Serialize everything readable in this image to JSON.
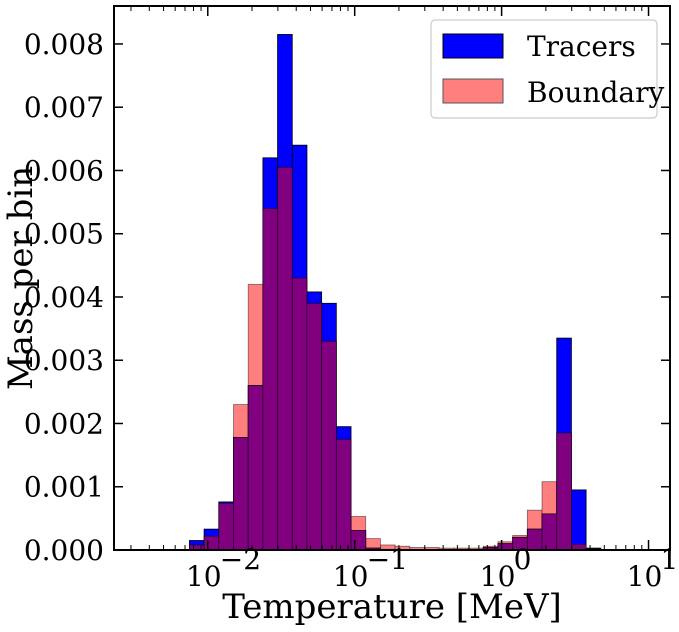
{
  "chart_data": {
    "type": "bar",
    "xlabel": "Temperature [MeV]",
    "ylabel": "Mass per bin",
    "xscale": "log",
    "xlim": [
      0.0023,
      14
    ],
    "ylim": [
      0,
      0.0086
    ],
    "grid": false,
    "legend": "top-right",
    "x_ticks": [
      {
        "value": 0.01,
        "base": "10",
        "exp": "−2"
      },
      {
        "value": 0.1,
        "base": "10",
        "exp": "−1"
      },
      {
        "value": 1,
        "base": "10",
        "exp": "0"
      },
      {
        "value": 10,
        "base": "10",
        "exp": "1"
      }
    ],
    "y_ticks": [
      "0.000",
      "0.001",
      "0.002",
      "0.003",
      "0.004",
      "0.005",
      "0.006",
      "0.007",
      "0.008"
    ],
    "bin_edges": [
      0.0075,
      0.00944,
      0.01189,
      0.01497,
      0.01884,
      0.02372,
      0.02986,
      0.03759,
      0.04732,
      0.05957,
      0.075,
      0.09442,
      0.11887,
      0.14965,
      0.1884,
      0.23718,
      0.29859,
      0.3759,
      0.47324,
      0.59578,
      0.75004,
      0.94425,
      1.18875,
      1.49656,
      1.88406,
      2.37189,
      2.98605,
      3.75924,
      4.7326
    ],
    "series": [
      {
        "name": "Tracers",
        "color": "#0000ff",
        "values": [
          0.00015,
          0.00033,
          0.00076,
          0.00178,
          0.0026,
          0.0062,
          0.00815,
          0.0064,
          0.00408,
          0.0039,
          0.00195,
          0.00031,
          3e-05,
          1e-05,
          0,
          0,
          0,
          0,
          0,
          0,
          4e-05,
          0.0001,
          0.0002,
          0.00033,
          0.00057,
          0.00335,
          0.00095,
          3e-05
        ]
      },
      {
        "name": "Boundary",
        "color": "#ff7f7f",
        "values": [
          8e-05,
          0.00022,
          0.00074,
          0.0023,
          0.0042,
          0.0054,
          0.00605,
          0.0043,
          0.0039,
          0.0033,
          0.00175,
          0.00053,
          0.00018,
          8e-05,
          6e-05,
          4e-05,
          4e-05,
          3e-05,
          3e-05,
          3e-05,
          6e-05,
          0.00013,
          0.00023,
          0.00063,
          0.00108,
          0.00185,
          9e-05,
          2e-05
        ]
      }
    ]
  }
}
